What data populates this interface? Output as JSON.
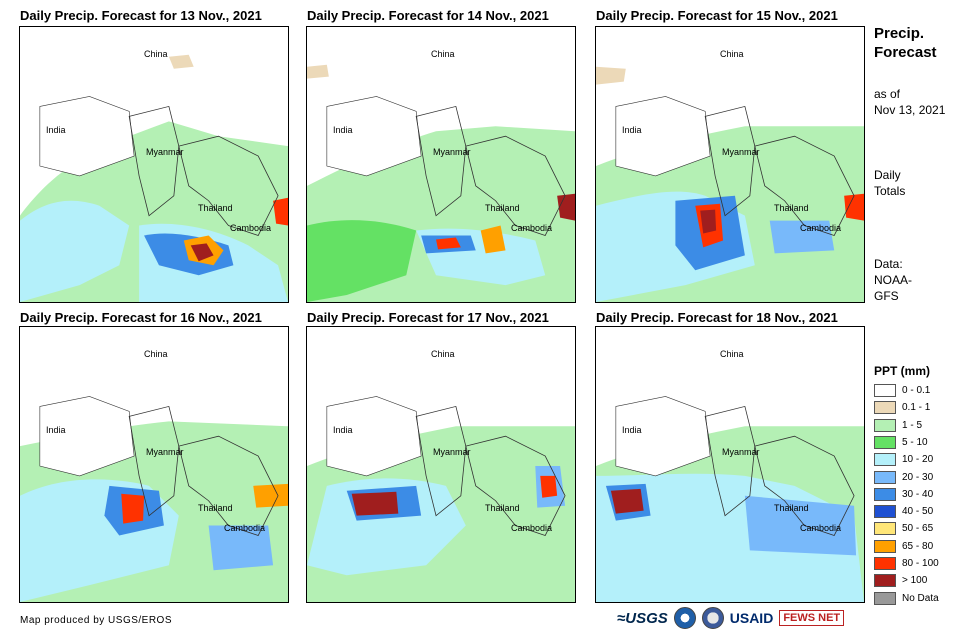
{
  "panels": [
    {
      "title": "Daily Precip. Forecast for 13 Nov., 2021",
      "labels": {
        "china": "China",
        "india": "India",
        "myanmar": "Myanmar",
        "thailand": "Thailand",
        "cambodia": "Cambodia"
      }
    },
    {
      "title": "Daily Precip. Forecast for 14 Nov., 2021",
      "labels": {
        "china": "China",
        "india": "India",
        "myanmar": "Myanmar",
        "thailand": "Thailand",
        "cambodia": "Cambodia"
      }
    },
    {
      "title": "Daily Precip. Forecast for 15 Nov., 2021",
      "labels": {
        "china": "China",
        "india": "India",
        "myanmar": "Myanmar",
        "thailand": "Thailand",
        "cambodia": "Cambodia"
      }
    },
    {
      "title": "Daily Precip. Forecast for 16 Nov., 2021",
      "labels": {
        "china": "China",
        "india": "India",
        "myanmar": "Myanmar",
        "thailand": "Thailand",
        "cambodia": "Cambodia"
      }
    },
    {
      "title": "Daily Precip. Forecast for 17 Nov., 2021",
      "labels": {
        "china": "China",
        "india": "India",
        "myanmar": "Myanmar",
        "thailand": "Thailand",
        "cambodia": "Cambodia"
      }
    },
    {
      "title": "Daily Precip. Forecast for 18 Nov., 2021",
      "labels": {
        "china": "China",
        "india": "India",
        "myanmar": "Myanmar",
        "thailand": "Thailand",
        "cambodia": "Cambodia"
      }
    }
  ],
  "side": {
    "title_line1": "Precip.",
    "title_line2": "Forecast",
    "asof_line1": "as of",
    "asof_line2": "Nov 13, 2021",
    "totals_line1": "Daily",
    "totals_line2": "Totals",
    "data_line1": "Data:",
    "data_line2": "NOAA-",
    "data_line3": "GFS"
  },
  "legend": {
    "title": "PPT (mm)",
    "items": [
      {
        "label": "0 - 0.1",
        "color": "#ffffff"
      },
      {
        "label": "0.1 - 1",
        "color": "#ecd9b8"
      },
      {
        "label": "1 - 5",
        "color": "#b4f0b4"
      },
      {
        "label": "5 - 10",
        "color": "#64e164"
      },
      {
        "label": "10 - 20",
        "color": "#b4f0fa"
      },
      {
        "label": "20 - 30",
        "color": "#78b9fa"
      },
      {
        "label": "30 - 40",
        "color": "#3c8ce6"
      },
      {
        "label": "40 - 50",
        "color": "#1e50d2"
      },
      {
        "label": "50 - 65",
        "color": "#ffe678"
      },
      {
        "label": "65 - 80",
        "color": "#ffa000"
      },
      {
        "label": "80 - 100",
        "color": "#ff3200"
      },
      {
        "label": "> 100",
        "color": "#a01e1e"
      },
      {
        "label": "No Data",
        "color": "#999999"
      }
    ]
  },
  "footer": "Map produced by USGS/EROS",
  "logos": {
    "usgs": "≈USGS",
    "usaid": "USAID",
    "fews": "FEWS NET"
  }
}
